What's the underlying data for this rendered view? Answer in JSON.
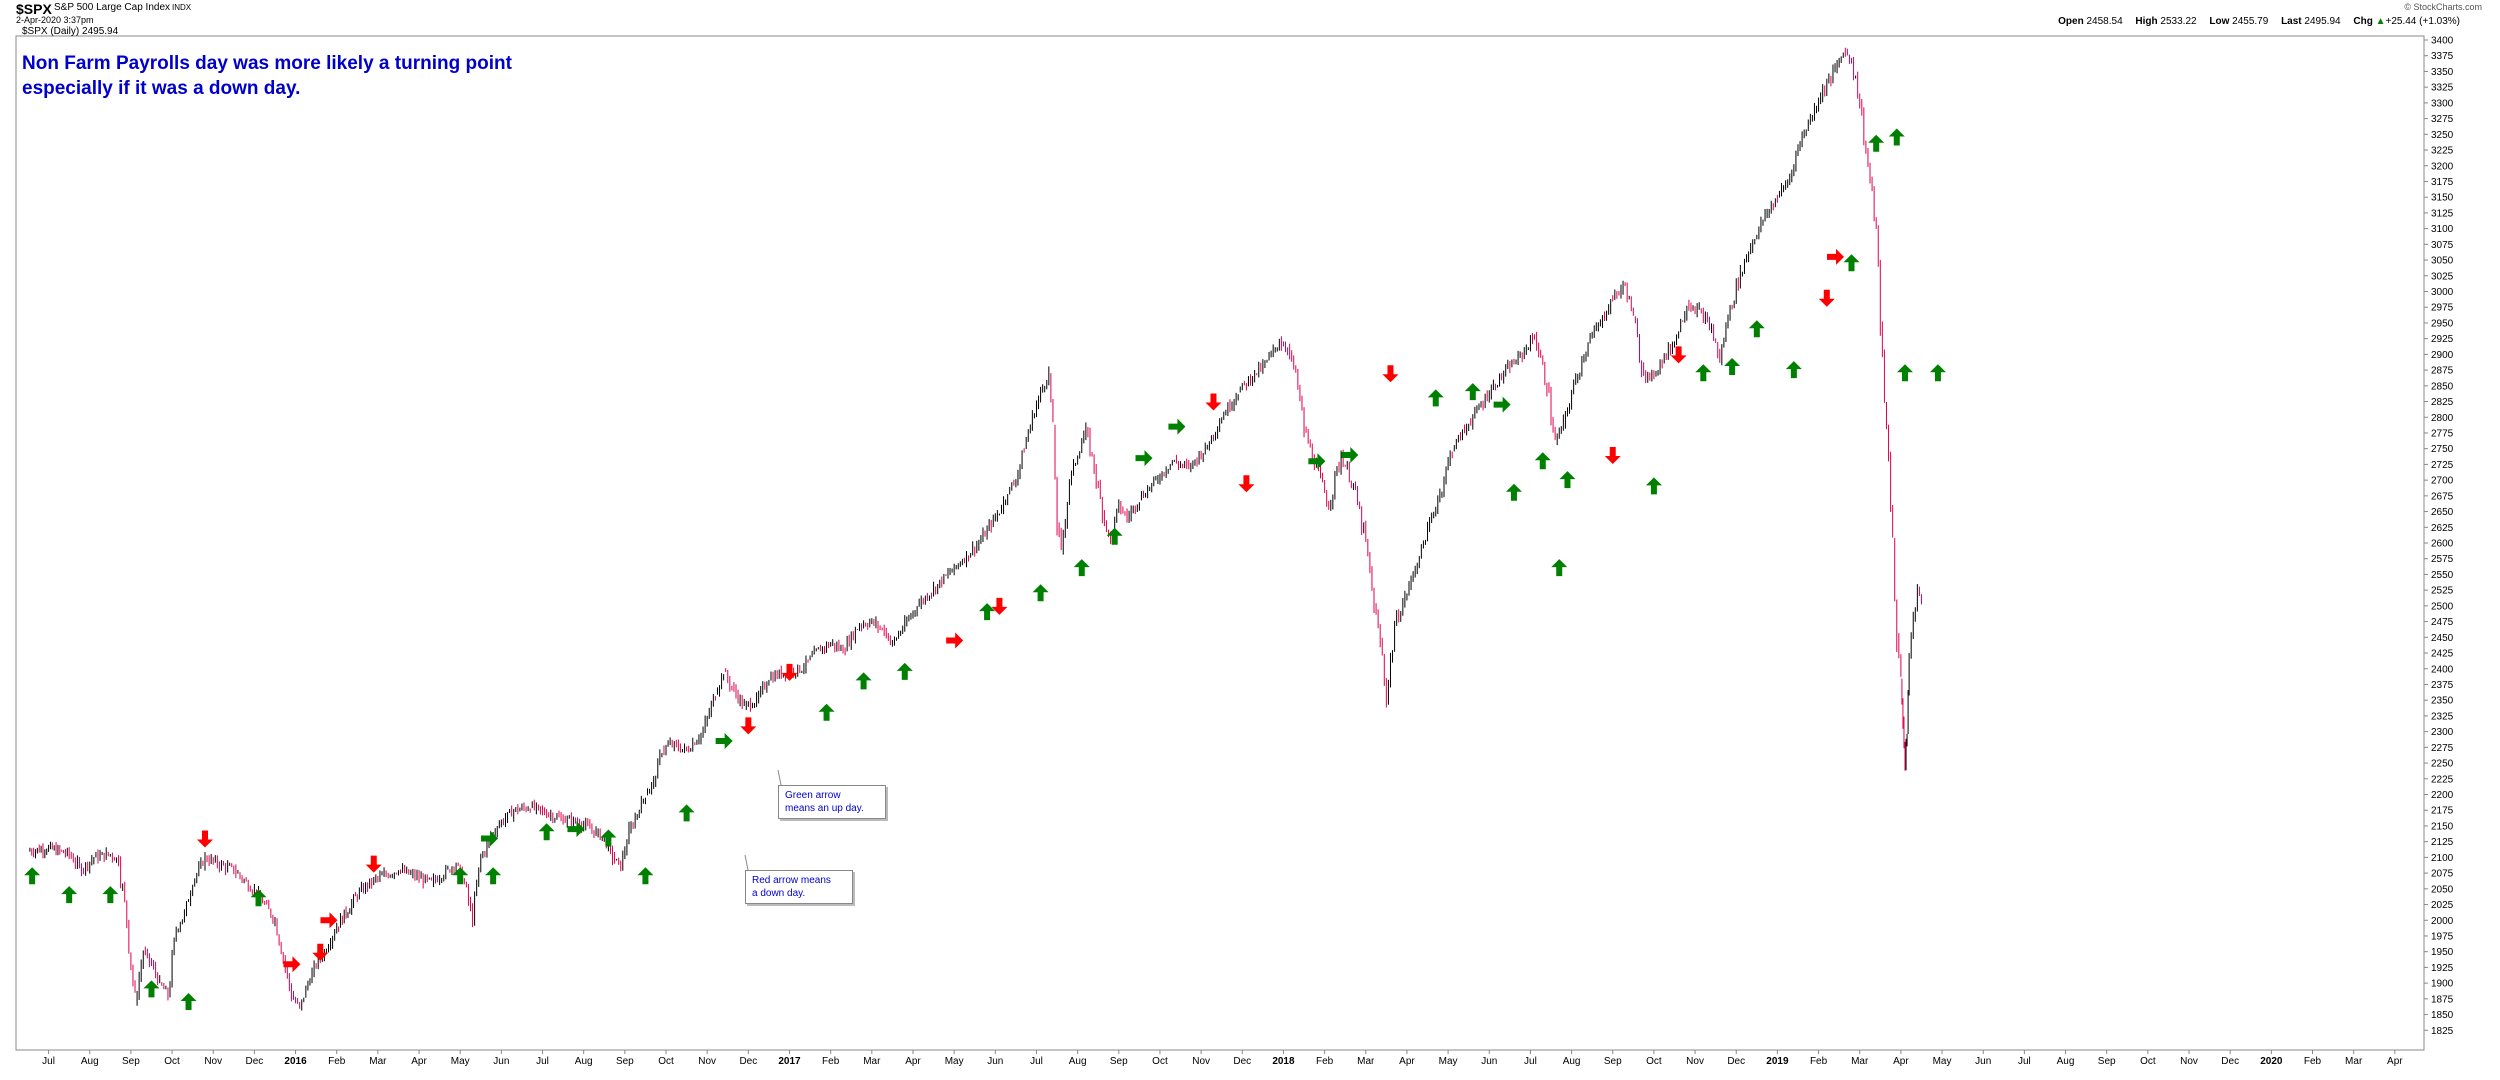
{
  "header": {
    "ticker": "$SPX",
    "index_name": "S&P 500 Large Cap Index",
    "index_suffix": "INDX",
    "timestamp": "2-Apr-2020 3:37pm",
    "brand": "© StockCharts.com",
    "open_label": "Open",
    "open": "2458.54",
    "high_label": "High",
    "high": "2533.22",
    "low_label": "Low",
    "low": "2455.79",
    "last_label": "Last",
    "last": "2495.94",
    "chg_label": "Chg",
    "chg": "+25.44 (+1.03%)",
    "chg_arrow": "▲"
  },
  "legend": {
    "series_label": "$SPX (Daily) 2495.94"
  },
  "annotations": {
    "title_line1": "Non Farm Payrolls day was more likely a turning point",
    "title_line2": "especially if it was a down day.",
    "green_callout_line1": "Green arrow",
    "green_callout_line2": "means an up day.",
    "red_callout_line1": "Red arrow means",
    "red_callout_line2": "a down day."
  },
  "colors": {
    "up_candle": "#000000",
    "down_candle": "#e0004d",
    "up_arrow": "#008000",
    "down_arrow": "#ff0000",
    "annotation_text": "#0000cc"
  },
  "chart_data": {
    "type": "line",
    "title": "$SPX (Daily) 2495.94",
    "ylim": [
      1800,
      3400
    ],
    "y_ticks": [
      1825,
      1850,
      1875,
      1900,
      1925,
      1950,
      1975,
      2000,
      2025,
      2050,
      2075,
      2100,
      2125,
      2150,
      2175,
      2200,
      2225,
      2250,
      2275,
      2300,
      2325,
      2350,
      2375,
      2400,
      2425,
      2450,
      2475,
      2500,
      2525,
      2550,
      2575,
      2600,
      2625,
      2650,
      2675,
      2700,
      2725,
      2750,
      2775,
      2800,
      2825,
      2850,
      2875,
      2900,
      2925,
      2950,
      2975,
      3000,
      3025,
      3050,
      3075,
      3100,
      3125,
      3150,
      3175,
      3200,
      3225,
      3250,
      3275,
      3300,
      3325,
      3350,
      3375,
      3400
    ],
    "x_months": [
      "Jul",
      "Aug",
      "Sep",
      "Oct",
      "Nov",
      "Dec",
      "2016",
      "Feb",
      "Mar",
      "Apr",
      "May",
      "Jun",
      "Jul",
      "Aug",
      "Sep",
      "Oct",
      "Nov",
      "Dec",
      "2017",
      "Feb",
      "Mar",
      "Apr",
      "May",
      "Jun",
      "Jul",
      "Aug",
      "Sep",
      "Oct",
      "Nov",
      "Dec",
      "2018",
      "Feb",
      "Mar",
      "Apr",
      "May",
      "Jun",
      "Jul",
      "Aug",
      "Sep",
      "Oct",
      "Nov",
      "Dec",
      "2019",
      "Feb",
      "Mar",
      "Apr",
      "May",
      "Jun",
      "Jul",
      "Aug",
      "Sep",
      "Oct",
      "Nov",
      "Dec",
      "2020",
      "Feb",
      "Mar",
      "Apr"
    ],
    "x_bold": [
      "2016",
      "2017",
      "2018",
      "2019",
      "2020"
    ],
    "grid": false,
    "series": [
      {
        "name": "$SPX (Daily) 2495.94",
        "points": [
          [
            0,
            2110
          ],
          [
            0.5,
            2115
          ],
          [
            1,
            2105
          ],
          [
            1.3,
            2080
          ],
          [
            1.6,
            2100
          ],
          [
            2,
            2105
          ],
          [
            2.2,
            2095
          ],
          [
            2.4,
            2000
          ],
          [
            2.6,
            1870
          ],
          [
            2.8,
            1950
          ],
          [
            3,
            1930
          ],
          [
            3.2,
            1900
          ],
          [
            3.4,
            1880
          ],
          [
            3.6,
            1985
          ],
          [
            3.8,
            2010
          ],
          [
            4,
            2060
          ],
          [
            4.3,
            2100
          ],
          [
            4.6,
            2090
          ],
          [
            5,
            2080
          ],
          [
            5.3,
            2060
          ],
          [
            5.6,
            2040
          ],
          [
            6,
            2000
          ],
          [
            6.2,
            1940
          ],
          [
            6.4,
            1880
          ],
          [
            6.6,
            1860
          ],
          [
            6.8,
            1900
          ],
          [
            7,
            1930
          ],
          [
            7.2,
            1950
          ],
          [
            7.5,
            1990
          ],
          [
            8,
            2040
          ],
          [
            8.3,
            2060
          ],
          [
            8.6,
            2070
          ],
          [
            9,
            2080
          ],
          [
            9.4,
            2070
          ],
          [
            9.8,
            2060
          ],
          [
            10.2,
            2080
          ],
          [
            10.4,
            2090
          ],
          [
            10.6,
            2060
          ],
          [
            10.8,
            2000
          ],
          [
            11,
            2100
          ],
          [
            11.4,
            2150
          ],
          [
            11.8,
            2175
          ],
          [
            12.2,
            2180
          ],
          [
            12.6,
            2170
          ],
          [
            13,
            2160
          ],
          [
            13.4,
            2155
          ],
          [
            13.8,
            2140
          ],
          [
            14,
            2130
          ],
          [
            14.2,
            2100
          ],
          [
            14.4,
            2085
          ],
          [
            14.6,
            2140
          ],
          [
            14.8,
            2170
          ],
          [
            15,
            2200
          ],
          [
            15.2,
            2220
          ],
          [
            15.4,
            2270
          ],
          [
            15.6,
            2280
          ],
          [
            16,
            2270
          ],
          [
            16.4,
            2300
          ],
          [
            16.7,
            2360
          ],
          [
            16.9,
            2395
          ],
          [
            17.1,
            2370
          ],
          [
            17.4,
            2340
          ],
          [
            17.7,
            2350
          ],
          [
            18,
            2385
          ],
          [
            18.4,
            2395
          ],
          [
            18.8,
            2400
          ],
          [
            19.2,
            2430
          ],
          [
            19.5,
            2440
          ],
          [
            19.8,
            2430
          ],
          [
            20.2,
            2470
          ],
          [
            20.5,
            2475
          ],
          [
            20.8,
            2460
          ],
          [
            21,
            2440
          ],
          [
            21.3,
            2470
          ],
          [
            21.6,
            2500
          ],
          [
            21.9,
            2520
          ],
          [
            22.2,
            2540
          ],
          [
            22.5,
            2560
          ],
          [
            22.8,
            2580
          ],
          [
            23.1,
            2600
          ],
          [
            23.4,
            2630
          ],
          [
            23.6,
            2650
          ],
          [
            23.8,
            2680
          ],
          [
            24,
            2700
          ],
          [
            24.2,
            2750
          ],
          [
            24.4,
            2800
          ],
          [
            24.6,
            2840
          ],
          [
            24.8,
            2870
          ],
          [
            24.9,
            2780
          ],
          [
            25,
            2630
          ],
          [
            25.1,
            2590
          ],
          [
            25.3,
            2700
          ],
          [
            25.5,
            2740
          ],
          [
            25.7,
            2780
          ],
          [
            25.9,
            2720
          ],
          [
            26.1,
            2650
          ],
          [
            26.3,
            2600
          ],
          [
            26.5,
            2660
          ],
          [
            26.7,
            2640
          ],
          [
            27,
            2670
          ],
          [
            27.4,
            2700
          ],
          [
            27.8,
            2730
          ],
          [
            28.2,
            2720
          ],
          [
            28.6,
            2750
          ],
          [
            29,
            2800
          ],
          [
            29.4,
            2840
          ],
          [
            29.8,
            2870
          ],
          [
            30,
            2880
          ],
          [
            30.2,
            2900
          ],
          [
            30.4,
            2920
          ],
          [
            30.6,
            2910
          ],
          [
            30.8,
            2870
          ],
          [
            31,
            2780
          ],
          [
            31.3,
            2720
          ],
          [
            31.6,
            2660
          ],
          [
            31.9,
            2740
          ],
          [
            32.2,
            2690
          ],
          [
            32.5,
            2600
          ],
          [
            32.7,
            2500
          ],
          [
            32.9,
            2420
          ],
          [
            33,
            2350
          ],
          [
            33.2,
            2470
          ],
          [
            33.5,
            2520
          ],
          [
            33.8,
            2580
          ],
          [
            34,
            2620
          ],
          [
            34.3,
            2680
          ],
          [
            34.6,
            2750
          ],
          [
            35,
            2790
          ],
          [
            35.3,
            2820
          ],
          [
            35.6,
            2850
          ],
          [
            36,
            2880
          ],
          [
            36.3,
            2900
          ],
          [
            36.6,
            2930
          ],
          [
            36.9,
            2850
          ],
          [
            37.1,
            2760
          ],
          [
            37.3,
            2790
          ],
          [
            37.6,
            2860
          ],
          [
            37.9,
            2920
          ],
          [
            38.2,
            2950
          ],
          [
            38.5,
            2990
          ],
          [
            38.8,
            3010
          ],
          [
            39,
            2960
          ],
          [
            39.2,
            2880
          ],
          [
            39.4,
            2860
          ],
          [
            39.7,
            2890
          ],
          [
            40,
            2920
          ],
          [
            40.3,
            2980
          ],
          [
            40.6,
            2970
          ],
          [
            40.9,
            2940
          ],
          [
            41.1,
            2890
          ],
          [
            41.3,
            2960
          ],
          [
            41.6,
            3030
          ],
          [
            41.9,
            3080
          ],
          [
            42.2,
            3120
          ],
          [
            42.5,
            3150
          ],
          [
            42.8,
            3180
          ],
          [
            43,
            3230
          ],
          [
            43.2,
            3260
          ],
          [
            43.4,
            3290
          ],
          [
            43.6,
            3320
          ],
          [
            43.8,
            3340
          ],
          [
            44.1,
            3380
          ],
          [
            44.3,
            3370
          ],
          [
            44.5,
            3300
          ],
          [
            44.7,
            3200
          ],
          [
            44.9,
            3100
          ],
          [
            45,
            2950
          ],
          [
            45.1,
            2820
          ],
          [
            45.2,
            2740
          ],
          [
            45.3,
            2600
          ],
          [
            45.4,
            2450
          ],
          [
            45.5,
            2380
          ],
          [
            45.55,
            2320
          ],
          [
            45.6,
            2240
          ],
          [
            45.65,
            2300
          ],
          [
            45.7,
            2420
          ],
          [
            45.8,
            2480
          ],
          [
            45.9,
            2530
          ],
          [
            46,
            2500
          ]
        ]
      }
    ],
    "markers": [
      {
        "kind": "up",
        "t": 0.1,
        "v": 2070
      },
      {
        "kind": "up",
        "t": 1,
        "v": 2040
      },
      {
        "kind": "up",
        "t": 2,
        "v": 2040
      },
      {
        "kind": "down",
        "t": 4.3,
        "v": 2130
      },
      {
        "kind": "up",
        "t": 3,
        "v": 1890
      },
      {
        "kind": "up",
        "t": 3.9,
        "v": 1870
      },
      {
        "kind": "up",
        "t": 5.6,
        "v": 2035
      },
      {
        "kind": "right",
        "t": 6.4,
        "v": 1930
      },
      {
        "kind": "down",
        "t": 7.1,
        "v": 1950
      },
      {
        "kind": "right",
        "t": 7.3,
        "v": 2000
      },
      {
        "kind": "down",
        "t": 8.4,
        "v": 2090
      },
      {
        "kind": "up",
        "t": 10.5,
        "v": 2070
      },
      {
        "kind": "right",
        "t": 11.2,
        "v": 2130
      },
      {
        "kind": "up",
        "t": 11.3,
        "v": 2070
      },
      {
        "kind": "up",
        "t": 12.6,
        "v": 2140
      },
      {
        "kind": "right",
        "t": 13.3,
        "v": 2145
      },
      {
        "kind": "up",
        "t": 14.1,
        "v": 2130
      },
      {
        "kind": "up",
        "t": 15,
        "v": 2070
      },
      {
        "kind": "up",
        "t": 16,
        "v": 2170
      },
      {
        "kind": "right",
        "t": 16.9,
        "v": 2285
      },
      {
        "kind": "down",
        "t": 17.5,
        "v": 2310
      },
      {
        "kind": "down",
        "t": 18.5,
        "v": 2395
      },
      {
        "kind": "up",
        "t": 19.4,
        "v": 2330
      },
      {
        "kind": "up",
        "t": 20.3,
        "v": 2380
      },
      {
        "kind": "up",
        "t": 21.3,
        "v": 2395
      },
      {
        "kind": "right",
        "t": 22.5,
        "v": 2445
      },
      {
        "kind": "up",
        "t": 23.3,
        "v": 2490
      },
      {
        "kind": "down",
        "t": 23.6,
        "v": 2500
      },
      {
        "kind": "up",
        "t": 24.6,
        "v": 2520
      },
      {
        "kind": "up",
        "t": 25.6,
        "v": 2560
      },
      {
        "kind": "up",
        "t": 26.4,
        "v": 2610
      },
      {
        "kind": "right",
        "t": 27.1,
        "v": 2735
      },
      {
        "kind": "right",
        "t": 27.9,
        "v": 2785
      },
      {
        "kind": "down",
        "t": 28.8,
        "v": 2825
      },
      {
        "kind": "down",
        "t": 29.6,
        "v": 2695
      },
      {
        "kind": "right",
        "t": 31.3,
        "v": 2730
      },
      {
        "kind": "right",
        "t": 32.1,
        "v": 2740
      },
      {
        "kind": "down",
        "t": 33.1,
        "v": 2870
      },
      {
        "kind": "up",
        "t": 34.2,
        "v": 2830
      },
      {
        "kind": "up",
        "t": 35.1,
        "v": 2840
      },
      {
        "kind": "right",
        "t": 35.8,
        "v": 2820
      },
      {
        "kind": "up",
        "t": 36.1,
        "v": 2680
      },
      {
        "kind": "up",
        "t": 36.8,
        "v": 2730
      },
      {
        "kind": "up",
        "t": 37.4,
        "v": 2700
      },
      {
        "kind": "up",
        "t": 37.2,
        "v": 2560
      },
      {
        "kind": "down",
        "t": 38.5,
        "v": 2740
      },
      {
        "kind": "up",
        "t": 39.5,
        "v": 2690
      },
      {
        "kind": "down",
        "t": 40.1,
        "v": 2900
      },
      {
        "kind": "up",
        "t": 40.7,
        "v": 2870
      },
      {
        "kind": "up",
        "t": 41.4,
        "v": 2880
      },
      {
        "kind": "up",
        "t": 42,
        "v": 2940
      },
      {
        "kind": "up",
        "t": 42.9,
        "v": 2875
      },
      {
        "kind": "down",
        "t": 43.7,
        "v": 2990
      },
      {
        "kind": "right",
        "t": 43.9,
        "v": 3055
      },
      {
        "kind": "up",
        "t": 44.3,
        "v": 3045
      },
      {
        "kind": "up",
        "t": 44.9,
        "v": 3235
      },
      {
        "kind": "up",
        "t": 45.4,
        "v": 3245
      },
      {
        "kind": "up",
        "t": 46.4,
        "v": 2870
      },
      {
        "kind": "up",
        "t": 45.6,
        "v": 2870
      }
    ]
  }
}
